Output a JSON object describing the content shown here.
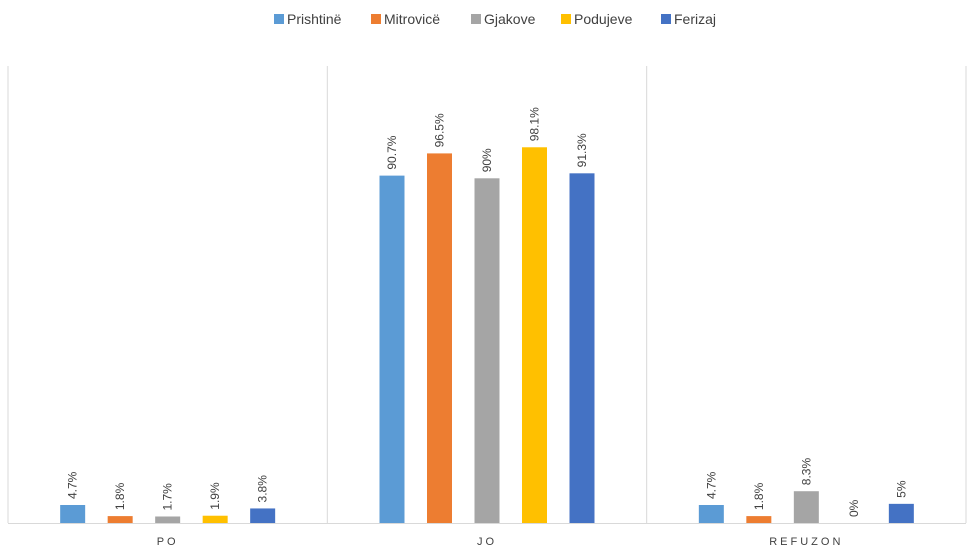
{
  "chart_data": {
    "type": "bar",
    "title": "",
    "xlabel": "",
    "ylabel": "",
    "ylim": [
      0,
      100
    ],
    "grid": false,
    "legend_position": "top",
    "categories": [
      "PO",
      "JO",
      "REFUZON"
    ],
    "series": [
      {
        "name": "Prishtinë",
        "color": "#5B9BD5",
        "values": [
          4.7,
          90.7,
          4.7
        ],
        "labels": [
          "4.7%",
          "90.7%",
          "4.7%"
        ]
      },
      {
        "name": "Mitrovicë",
        "color": "#ED7D31",
        "values": [
          1.8,
          96.5,
          1.8
        ],
        "labels": [
          "1.8%",
          "96.5%",
          "1.8%"
        ]
      },
      {
        "name": "Gjakove",
        "color": "#A5A5A5",
        "values": [
          1.7,
          90,
          8.3
        ],
        "labels": [
          "1.7%",
          "90%",
          "8.3%"
        ]
      },
      {
        "name": "Podujeve",
        "color": "#FFC000",
        "values": [
          1.9,
          98.1,
          0
        ],
        "labels": [
          "1.9%",
          "98.1%",
          "0%"
        ]
      },
      {
        "name": "Ferizaj",
        "color": "#4472C4",
        "values": [
          3.8,
          91.3,
          5
        ],
        "labels": [
          "3.8%",
          "91.3%",
          "5%"
        ]
      }
    ]
  }
}
